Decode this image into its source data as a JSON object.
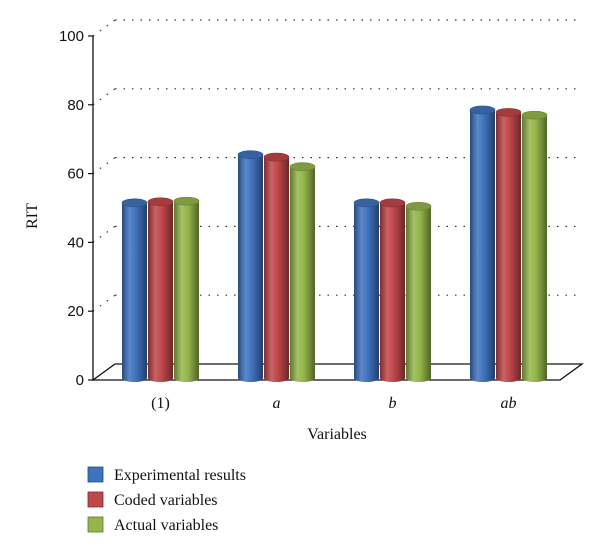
{
  "chart_data": {
    "type": "bar",
    "title": "",
    "xlabel": "Variables",
    "ylabel": "RIT",
    "ylim": [
      0,
      100
    ],
    "yticks": [
      0,
      20,
      40,
      60,
      80,
      100
    ],
    "categories": [
      "(1)",
      "a",
      "b",
      "ab"
    ],
    "category_italic": [
      false,
      true,
      true,
      true
    ],
    "series": [
      {
        "name": "Experimental results",
        "color": "#3f73bf",
        "values": [
          51.5,
          65.5,
          51.5,
          78.5
        ]
      },
      {
        "name": "Coded variables",
        "color": "#c0474a",
        "values": [
          51.8,
          64.8,
          51.5,
          77.8
        ]
      },
      {
        "name": "Actual variables",
        "color": "#94b64a",
        "values": [
          52.0,
          62.0,
          50.5,
          77.0
        ]
      }
    ],
    "grid": true,
    "legend_position": "bottom-left"
  }
}
